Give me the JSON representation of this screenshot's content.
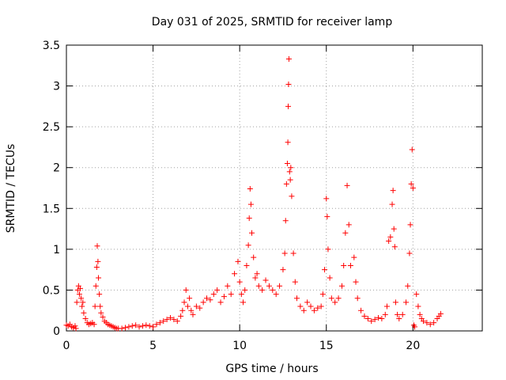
{
  "chart_data": {
    "type": "scatter",
    "title": "Day 031 of 2025, SRMTID for receiver lamp",
    "xlabel": "GPS time / hours",
    "ylabel": "SRMTID / TECUs",
    "xlim": [
      0,
      24
    ],
    "ylim": [
      0,
      3.5
    ],
    "xticks": [
      0,
      5,
      10,
      15,
      20
    ],
    "xtick_labels": [
      "0",
      "5",
      "10",
      "15",
      "20"
    ],
    "yticks": [
      0,
      0.5,
      1,
      1.5,
      2,
      2.5,
      3,
      3.5
    ],
    "ytick_labels": [
      "0",
      "0.5",
      "1",
      "1.5",
      "2",
      "2.5",
      "3",
      "3.5"
    ],
    "grid": true,
    "marker": "+",
    "color": "#ff0000",
    "series": [
      {
        "name": "SRMTID",
        "points": [
          [
            0.0,
            0.07
          ],
          [
            0.1,
            0.06
          ],
          [
            0.2,
            0.08
          ],
          [
            0.3,
            0.05
          ],
          [
            0.4,
            0.04
          ],
          [
            0.5,
            0.06
          ],
          [
            0.55,
            0.03
          ],
          [
            0.6,
            0.35
          ],
          [
            0.65,
            0.5
          ],
          [
            0.7,
            0.55
          ],
          [
            0.75,
            0.45
          ],
          [
            0.8,
            0.52
          ],
          [
            0.85,
            0.4
          ],
          [
            0.9,
            0.3
          ],
          [
            0.95,
            0.35
          ],
          [
            1.0,
            0.22
          ],
          [
            1.1,
            0.15
          ],
          [
            1.2,
            0.1
          ],
          [
            1.3,
            0.08
          ],
          [
            1.4,
            0.09
          ],
          [
            1.5,
            0.1
          ],
          [
            1.6,
            0.08
          ],
          [
            1.65,
            0.3
          ],
          [
            1.7,
            0.55
          ],
          [
            1.75,
            0.78
          ],
          [
            1.78,
            1.04
          ],
          [
            1.82,
            0.85
          ],
          [
            1.85,
            0.65
          ],
          [
            1.9,
            0.45
          ],
          [
            1.95,
            0.3
          ],
          [
            2.0,
            0.22
          ],
          [
            2.1,
            0.17
          ],
          [
            2.2,
            0.12
          ],
          [
            2.3,
            0.1
          ],
          [
            2.4,
            0.08
          ],
          [
            2.5,
            0.07
          ],
          [
            2.6,
            0.06
          ],
          [
            2.7,
            0.05
          ],
          [
            2.8,
            0.04
          ],
          [
            2.9,
            0.03
          ],
          [
            3.0,
            0.03
          ],
          [
            3.2,
            0.03
          ],
          [
            3.4,
            0.04
          ],
          [
            3.6,
            0.05
          ],
          [
            3.8,
            0.06
          ],
          [
            4.0,
            0.07
          ],
          [
            4.2,
            0.05
          ],
          [
            4.4,
            0.06
          ],
          [
            4.6,
            0.07
          ],
          [
            4.8,
            0.06
          ],
          [
            5.0,
            0.05
          ],
          [
            5.2,
            0.08
          ],
          [
            5.4,
            0.1
          ],
          [
            5.6,
            0.12
          ],
          [
            5.8,
            0.14
          ],
          [
            6.0,
            0.16
          ],
          [
            6.2,
            0.14
          ],
          [
            6.4,
            0.12
          ],
          [
            6.6,
            0.18
          ],
          [
            6.7,
            0.25
          ],
          [
            6.8,
            0.35
          ],
          [
            6.9,
            0.5
          ],
          [
            7.0,
            0.3
          ],
          [
            7.1,
            0.4
          ],
          [
            7.2,
            0.25
          ],
          [
            7.3,
            0.2
          ],
          [
            7.5,
            0.3
          ],
          [
            7.7,
            0.28
          ],
          [
            7.9,
            0.35
          ],
          [
            8.1,
            0.4
          ],
          [
            8.3,
            0.38
          ],
          [
            8.5,
            0.45
          ],
          [
            8.7,
            0.5
          ],
          [
            8.9,
            0.35
          ],
          [
            9.1,
            0.42
          ],
          [
            9.3,
            0.55
          ],
          [
            9.5,
            0.45
          ],
          [
            9.7,
            0.7
          ],
          [
            9.9,
            0.85
          ],
          [
            10.0,
            0.6
          ],
          [
            10.1,
            0.45
          ],
          [
            10.2,
            0.35
          ],
          [
            10.3,
            0.5
          ],
          [
            10.4,
            0.8
          ],
          [
            10.5,
            1.05
          ],
          [
            10.55,
            1.38
          ],
          [
            10.6,
            1.74
          ],
          [
            10.65,
            1.55
          ],
          [
            10.7,
            1.2
          ],
          [
            10.8,
            0.9
          ],
          [
            10.9,
            0.65
          ],
          [
            11.0,
            0.7
          ],
          [
            11.1,
            0.55
          ],
          [
            11.3,
            0.5
          ],
          [
            11.5,
            0.62
          ],
          [
            11.7,
            0.55
          ],
          [
            11.9,
            0.5
          ],
          [
            12.1,
            0.45
          ],
          [
            12.3,
            0.55
          ],
          [
            12.5,
            0.75
          ],
          [
            12.6,
            0.95
          ],
          [
            12.65,
            1.35
          ],
          [
            12.7,
            1.8
          ],
          [
            12.75,
            2.05
          ],
          [
            12.78,
            2.31
          ],
          [
            12.8,
            2.75
          ],
          [
            12.82,
            3.02
          ],
          [
            12.84,
            3.33
          ],
          [
            12.88,
            1.95
          ],
          [
            12.92,
            1.85
          ],
          [
            12.95,
            2.0
          ],
          [
            13.0,
            1.65
          ],
          [
            13.1,
            0.95
          ],
          [
            13.2,
            0.6
          ],
          [
            13.3,
            0.4
          ],
          [
            13.5,
            0.3
          ],
          [
            13.7,
            0.25
          ],
          [
            13.9,
            0.35
          ],
          [
            14.1,
            0.3
          ],
          [
            14.3,
            0.25
          ],
          [
            14.5,
            0.28
          ],
          [
            14.7,
            0.3
          ],
          [
            14.8,
            0.45
          ],
          [
            14.9,
            0.75
          ],
          [
            15.0,
            1.62
          ],
          [
            15.05,
            1.4
          ],
          [
            15.1,
            1.0
          ],
          [
            15.2,
            0.65
          ],
          [
            15.3,
            0.4
          ],
          [
            15.5,
            0.35
          ],
          [
            15.7,
            0.4
          ],
          [
            15.9,
            0.55
          ],
          [
            16.0,
            0.8
          ],
          [
            16.1,
            1.2
          ],
          [
            16.2,
            1.78
          ],
          [
            16.3,
            1.3
          ],
          [
            16.4,
            0.8
          ],
          [
            16.6,
            0.9
          ],
          [
            16.7,
            0.6
          ],
          [
            16.8,
            0.4
          ],
          [
            17.0,
            0.25
          ],
          [
            17.2,
            0.18
          ],
          [
            17.4,
            0.15
          ],
          [
            17.6,
            0.12
          ],
          [
            17.8,
            0.14
          ],
          [
            18.0,
            0.16
          ],
          [
            18.2,
            0.15
          ],
          [
            18.4,
            0.2
          ],
          [
            18.5,
            0.3
          ],
          [
            18.6,
            1.1
          ],
          [
            18.7,
            1.15
          ],
          [
            18.8,
            1.55
          ],
          [
            18.85,
            1.72
          ],
          [
            18.9,
            1.25
          ],
          [
            18.95,
            1.03
          ],
          [
            19.0,
            0.35
          ],
          [
            19.1,
            0.2
          ],
          [
            19.2,
            0.15
          ],
          [
            19.4,
            0.2
          ],
          [
            19.6,
            0.35
          ],
          [
            19.7,
            0.55
          ],
          [
            19.8,
            0.95
          ],
          [
            19.85,
            1.3
          ],
          [
            19.9,
            1.8
          ],
          [
            19.95,
            2.22
          ],
          [
            20.0,
            1.75
          ],
          [
            20.05,
            0.07
          ],
          [
            20.1,
            0.05
          ],
          [
            20.2,
            0.45
          ],
          [
            20.3,
            0.3
          ],
          [
            20.4,
            0.2
          ],
          [
            20.5,
            0.15
          ],
          [
            20.6,
            0.12
          ],
          [
            20.8,
            0.1
          ],
          [
            21.0,
            0.08
          ],
          [
            21.2,
            0.1
          ],
          [
            21.4,
            0.15
          ],
          [
            21.5,
            0.18
          ],
          [
            21.6,
            0.21
          ]
        ]
      }
    ]
  }
}
